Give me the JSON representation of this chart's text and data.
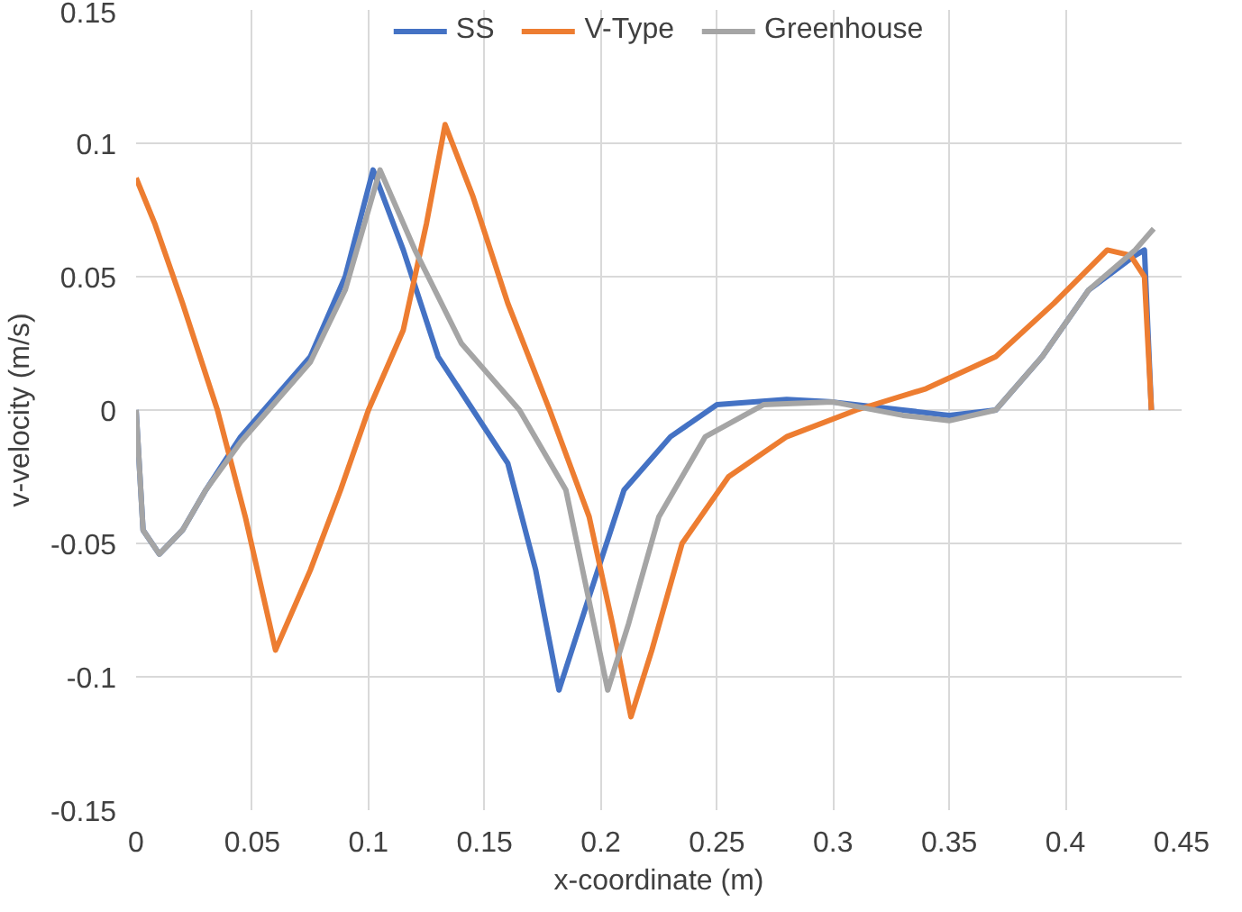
{
  "chart_data": {
    "type": "line",
    "xlabel": "x-coordinate (m)",
    "ylabel": "v-velocity (m/s)",
    "xlim": [
      0,
      0.45
    ],
    "ylim": [
      -0.15,
      0.15
    ],
    "xticks": [
      {
        "value": 0,
        "label": "0"
      },
      0.05,
      0.1,
      0.15,
      0.2,
      0.25,
      0.3,
      0.35,
      0.4,
      0.45
    ],
    "yticks": [
      -0.15,
      -0.1,
      -0.05,
      {
        "value": 0,
        "label": "0"
      },
      0.05,
      0.1,
      0.15
    ],
    "grid": true,
    "legend": "top",
    "marker": "none",
    "line_style": "solid",
    "series": [
      {
        "name": "SS",
        "color": "#4472c4",
        "x": [
          0,
          0.003,
          0.01,
          0.02,
          0.03,
          0.045,
          0.055,
          0.075,
          0.09,
          0.102,
          0.115,
          0.13,
          0.145,
          0.16,
          0.172,
          0.182,
          0.195,
          0.21,
          0.23,
          0.25,
          0.28,
          0.3,
          0.33,
          0.35,
          0.37,
          0.39,
          0.41,
          0.43,
          0.434,
          0.437
        ],
        "values": [
          0,
          -0.045,
          -0.054,
          -0.045,
          -0.03,
          -0.01,
          0,
          0.02,
          0.05,
          0.09,
          0.06,
          0.02,
          0,
          -0.02,
          -0.06,
          -0.105,
          -0.07,
          -0.03,
          -0.01,
          0.002,
          0.004,
          0.003,
          0,
          -0.002,
          0,
          0.02,
          0.045,
          0.058,
          0.06,
          0
        ]
      },
      {
        "name": "V-Type",
        "color": "#ed7d31",
        "x": [
          0,
          0.008,
          0.02,
          0.035,
          0.047,
          0.06,
          0.075,
          0.088,
          0.1,
          0.115,
          0.125,
          0.133,
          0.145,
          0.16,
          0.178,
          0.195,
          0.205,
          0.213,
          0.222,
          0.235,
          0.255,
          0.28,
          0.31,
          0.34,
          0.37,
          0.395,
          0.418,
          0.428,
          0.434,
          0.437
        ],
        "values": [
          0.087,
          0.07,
          0.04,
          0,
          -0.04,
          -0.09,
          -0.06,
          -0.03,
          0,
          0.03,
          0.07,
          0.107,
          0.08,
          0.04,
          0,
          -0.04,
          -0.08,
          -0.115,
          -0.09,
          -0.05,
          -0.025,
          -0.01,
          0,
          0.008,
          0.02,
          0.04,
          0.06,
          0.058,
          0.05,
          0
        ]
      },
      {
        "name": "Greenhouse",
        "color": "#a5a5a5",
        "x": [
          0,
          0.003,
          0.01,
          0.02,
          0.03,
          0.045,
          0.055,
          0.075,
          0.09,
          0.105,
          0.12,
          0.14,
          0.155,
          0.165,
          0.185,
          0.197,
          0.203,
          0.212,
          0.225,
          0.245,
          0.27,
          0.3,
          0.33,
          0.35,
          0.37,
          0.39,
          0.41,
          0.43,
          0.438
        ],
        "values": [
          0,
          -0.045,
          -0.054,
          -0.045,
          -0.03,
          -0.012,
          -0.002,
          0.018,
          0.045,
          0.09,
          0.06,
          0.025,
          0.01,
          0,
          -0.03,
          -0.08,
          -0.105,
          -0.08,
          -0.04,
          -0.01,
          0.002,
          0.003,
          -0.002,
          -0.004,
          0,
          0.02,
          0.045,
          0.06,
          0.068
        ]
      }
    ]
  }
}
